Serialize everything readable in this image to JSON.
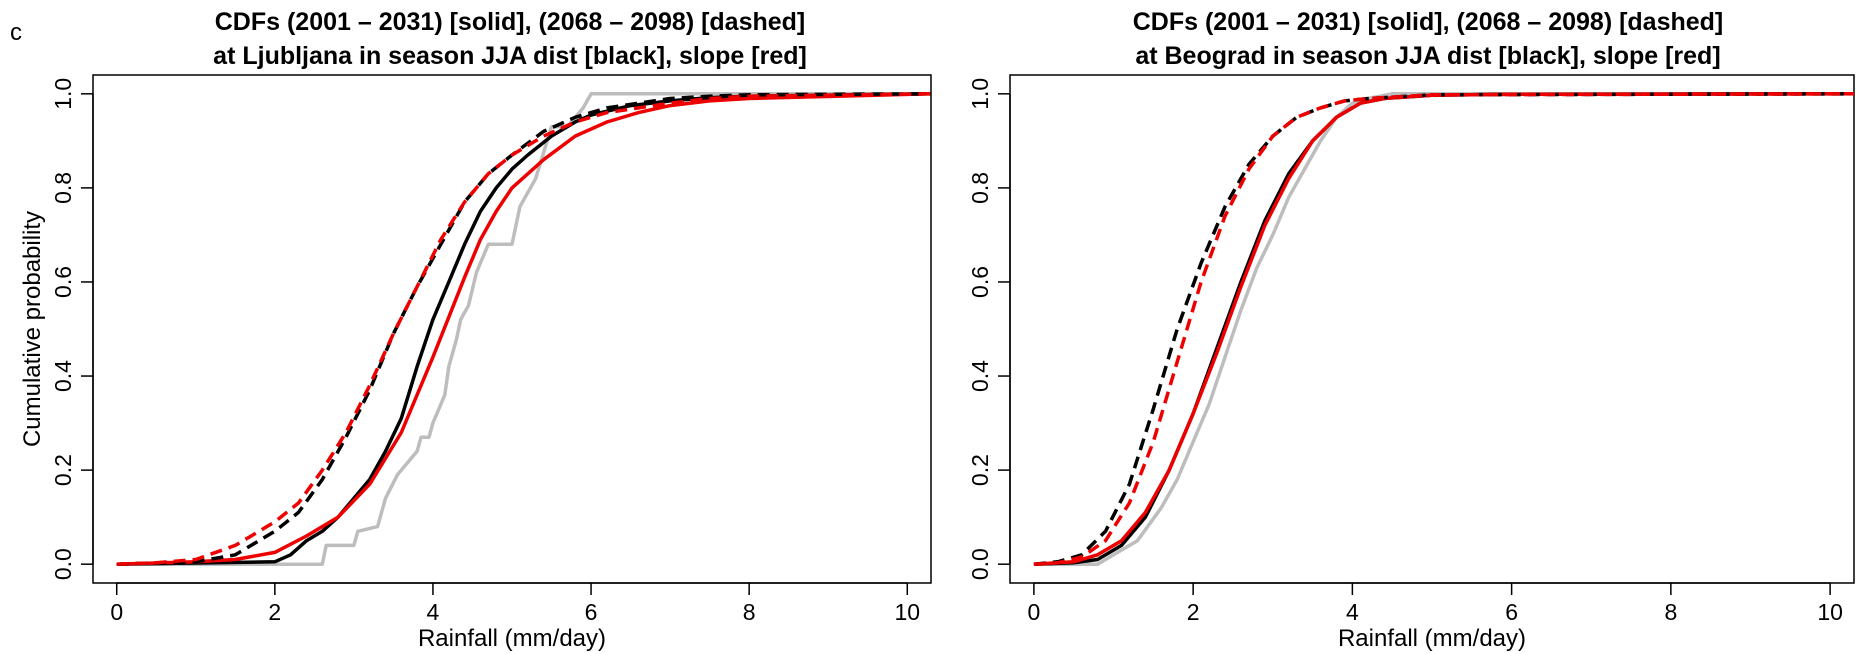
{
  "figure": {
    "panel_label": "c"
  },
  "chart_data": [
    {
      "type": "line",
      "title": [
        "CDFs (2001 – 2031) [solid], (2068 – 2098) [dashed]",
        "at Ljubljana in season JJA dist [black], slope [red]"
      ],
      "xlabel": "Rainfall (mm/day)",
      "ylabel": "Cumulative probability",
      "xlim": [
        -0.3,
        10.3
      ],
      "ylim": [
        -0.04,
        1.04
      ],
      "xticks": [
        0,
        2,
        4,
        6,
        8,
        10
      ],
      "yticks": [
        0.0,
        0.2,
        0.4,
        0.6,
        0.8,
        1.0
      ],
      "xtick_labels": [
        "0",
        "2",
        "4",
        "6",
        "8",
        "10"
      ],
      "ytick_labels": [
        "0.0",
        "0.2",
        "0.4",
        "0.6",
        "0.8",
        "1.0"
      ],
      "colors": {
        "observed": "#bdbdbd",
        "dist": "#000000",
        "slope": "#ee0000"
      },
      "series": [
        {
          "color": "#bdbdbd",
          "style": "solid",
          "x": [
            0,
            2.6,
            2.65,
            3.0,
            3.05,
            3.3,
            3.4,
            3.55,
            3.65,
            3.8,
            3.85,
            3.95,
            4.0,
            4.15,
            4.2,
            4.3,
            4.35,
            4.45,
            4.55,
            4.7,
            4.8,
            5.0,
            5.1,
            5.3,
            5.5,
            5.7,
            5.9,
            6.0,
            10.3
          ],
          "y": [
            0,
            0,
            0.04,
            0.04,
            0.07,
            0.08,
            0.14,
            0.19,
            0.21,
            0.24,
            0.27,
            0.27,
            0.3,
            0.36,
            0.42,
            0.48,
            0.52,
            0.55,
            0.62,
            0.68,
            0.68,
            0.68,
            0.76,
            0.82,
            0.93,
            0.93,
            0.97,
            1.0,
            1.0
          ]
        },
        {
          "color": "#000000",
          "style": "solid",
          "x": [
            0,
            2.0,
            2.2,
            2.4,
            2.6,
            2.8,
            3.0,
            3.2,
            3.4,
            3.6,
            3.8,
            4.0,
            4.2,
            4.4,
            4.6,
            4.8,
            5.0,
            5.2,
            5.5,
            5.8,
            6.0,
            6.5,
            7.0,
            7.5,
            8.0,
            10.3
          ],
          "y": [
            0,
            0.005,
            0.02,
            0.05,
            0.07,
            0.1,
            0.14,
            0.18,
            0.24,
            0.31,
            0.42,
            0.52,
            0.6,
            0.68,
            0.75,
            0.8,
            0.84,
            0.87,
            0.91,
            0.94,
            0.955,
            0.975,
            0.985,
            0.992,
            0.995,
            1.0
          ]
        },
        {
          "color": "#ee0000",
          "style": "solid",
          "x": [
            0,
            1.0,
            1.5,
            2.0,
            2.4,
            2.8,
            3.2,
            3.6,
            4.0,
            4.4,
            4.6,
            4.8,
            5.0,
            5.4,
            5.8,
            6.2,
            6.6,
            7.0,
            7.5,
            8.0,
            10.3
          ],
          "y": [
            0,
            0.005,
            0.01,
            0.025,
            0.06,
            0.1,
            0.17,
            0.28,
            0.44,
            0.61,
            0.69,
            0.75,
            0.8,
            0.86,
            0.91,
            0.94,
            0.96,
            0.975,
            0.985,
            0.99,
            1.0
          ]
        },
        {
          "color": "#000000",
          "style": "dashed",
          "x": [
            0,
            1.0,
            1.5,
            2.0,
            2.3,
            2.6,
            2.9,
            3.2,
            3.5,
            3.8,
            4.1,
            4.4,
            4.7,
            5.0,
            5.4,
            5.8,
            6.2,
            6.6,
            7.0,
            7.5,
            8.0,
            10.3
          ],
          "y": [
            0,
            0.005,
            0.02,
            0.07,
            0.11,
            0.18,
            0.27,
            0.37,
            0.49,
            0.59,
            0.68,
            0.77,
            0.83,
            0.87,
            0.92,
            0.95,
            0.97,
            0.98,
            0.99,
            0.995,
            0.998,
            1.0
          ]
        },
        {
          "color": "#ee0000",
          "style": "dashed",
          "x": [
            0,
            0.5,
            1.0,
            1.5,
            2.0,
            2.3,
            2.6,
            2.9,
            3.2,
            3.5,
            3.8,
            4.1,
            4.4,
            4.7,
            5.0,
            5.4,
            5.8,
            6.2,
            6.6,
            7.0,
            7.5,
            8.0,
            10.3
          ],
          "y": [
            0,
            0.003,
            0.01,
            0.04,
            0.09,
            0.13,
            0.2,
            0.28,
            0.38,
            0.49,
            0.59,
            0.69,
            0.77,
            0.83,
            0.87,
            0.91,
            0.94,
            0.96,
            0.97,
            0.98,
            0.99,
            0.995,
            1.0
          ]
        }
      ]
    },
    {
      "type": "line",
      "title": [
        "CDFs (2001 – 2031) [solid], (2068 – 2098) [dashed]",
        "at Beograd in season JJA dist [black], slope [red]"
      ],
      "xlabel": "Rainfall (mm/day)",
      "ylabel": "",
      "xlim": [
        -0.3,
        10.3
      ],
      "ylim": [
        -0.04,
        1.04
      ],
      "xticks": [
        0,
        2,
        4,
        6,
        8,
        10
      ],
      "yticks": [
        0.0,
        0.2,
        0.4,
        0.6,
        0.8,
        1.0
      ],
      "xtick_labels": [
        "0",
        "2",
        "4",
        "6",
        "8",
        "10"
      ],
      "ytick_labels": [
        "0.0",
        "0.2",
        "0.4",
        "0.6",
        "0.8",
        "1.0"
      ],
      "colors": {
        "observed": "#bdbdbd",
        "dist": "#000000",
        "slope": "#ee0000"
      },
      "series": [
        {
          "color": "#bdbdbd",
          "style": "solid",
          "x": [
            0,
            0.8,
            1.0,
            1.3,
            1.6,
            1.8,
            2.0,
            2.2,
            2.4,
            2.6,
            2.8,
            3.0,
            3.2,
            3.4,
            3.6,
            3.8,
            4.0,
            4.2,
            4.5,
            10.3
          ],
          "y": [
            0,
            0,
            0.02,
            0.05,
            0.12,
            0.18,
            0.26,
            0.34,
            0.44,
            0.54,
            0.63,
            0.7,
            0.78,
            0.84,
            0.9,
            0.95,
            0.98,
            0.99,
            1.0,
            1.0
          ]
        },
        {
          "color": "#000000",
          "style": "solid",
          "x": [
            0,
            0.5,
            0.8,
            1.1,
            1.4,
            1.7,
            2.0,
            2.3,
            2.6,
            2.9,
            3.2,
            3.5,
            3.8,
            4.1,
            4.4,
            5.0,
            6.0,
            10.3
          ],
          "y": [
            0,
            0.003,
            0.01,
            0.04,
            0.1,
            0.2,
            0.32,
            0.46,
            0.6,
            0.73,
            0.83,
            0.9,
            0.95,
            0.98,
            0.99,
            0.997,
            0.999,
            1.0
          ]
        },
        {
          "color": "#ee0000",
          "style": "solid",
          "x": [
            0,
            0.5,
            0.8,
            1.1,
            1.4,
            1.7,
            2.0,
            2.3,
            2.6,
            2.9,
            3.2,
            3.5,
            3.8,
            4.1,
            4.4,
            5.0,
            6.0,
            10.3
          ],
          "y": [
            0,
            0.005,
            0.02,
            0.05,
            0.11,
            0.2,
            0.32,
            0.45,
            0.59,
            0.72,
            0.82,
            0.9,
            0.95,
            0.98,
            0.99,
            0.997,
            0.999,
            1.0
          ]
        },
        {
          "color": "#000000",
          "style": "dashed",
          "x": [
            0,
            0.3,
            0.6,
            0.9,
            1.2,
            1.5,
            1.8,
            2.1,
            2.4,
            2.7,
            3.0,
            3.3,
            3.6,
            3.9,
            4.2,
            5.0,
            10.3
          ],
          "y": [
            0,
            0.005,
            0.02,
            0.07,
            0.17,
            0.33,
            0.5,
            0.64,
            0.76,
            0.85,
            0.91,
            0.95,
            0.97,
            0.985,
            0.99,
            0.998,
            1.0
          ]
        },
        {
          "color": "#ee0000",
          "style": "dashed",
          "x": [
            0,
            0.3,
            0.6,
            0.9,
            1.2,
            1.5,
            1.8,
            2.1,
            2.4,
            2.7,
            3.0,
            3.3,
            3.6,
            3.9,
            4.2,
            5.0,
            10.3
          ],
          "y": [
            0,
            0.003,
            0.015,
            0.05,
            0.13,
            0.26,
            0.43,
            0.6,
            0.74,
            0.84,
            0.91,
            0.95,
            0.97,
            0.985,
            0.99,
            0.998,
            1.0
          ]
        }
      ]
    }
  ]
}
